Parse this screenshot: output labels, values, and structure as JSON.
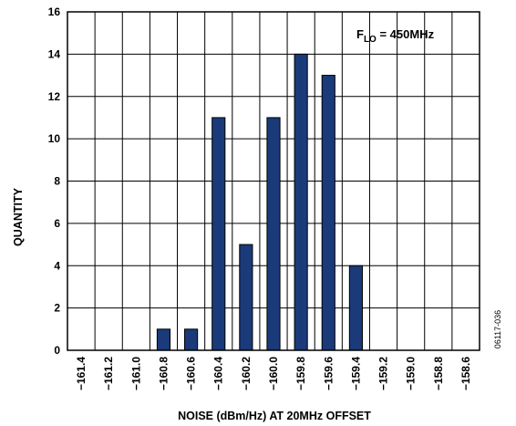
{
  "chart_data": {
    "type": "bar",
    "categories": [
      "−161.4",
      "−161.2",
      "−161.0",
      "−160.8",
      "−160.6",
      "−160.4",
      "−160.2",
      "−160.0",
      "−159.8",
      "−159.6",
      "−159.4",
      "−159.2",
      "−159.0",
      "−158.8",
      "−158.6"
    ],
    "values": [
      0,
      0,
      0,
      1,
      1,
      11,
      5,
      11,
      14,
      13,
      4,
      0,
      0,
      0,
      0
    ],
    "xlabel": "NOISE (dBm/Hz) AT 20MHz OFFSET",
    "ylabel": "QUANTITY",
    "ylim": [
      0,
      16
    ],
    "yticks": [
      0,
      2,
      4,
      6,
      8,
      10,
      12,
      14,
      16
    ],
    "grid": true,
    "bar_color": "#1a3a7a",
    "annotation": {
      "main": "F",
      "sub": "LO",
      "rest": " = 450MHz"
    },
    "figure_id": "06117-036"
  }
}
